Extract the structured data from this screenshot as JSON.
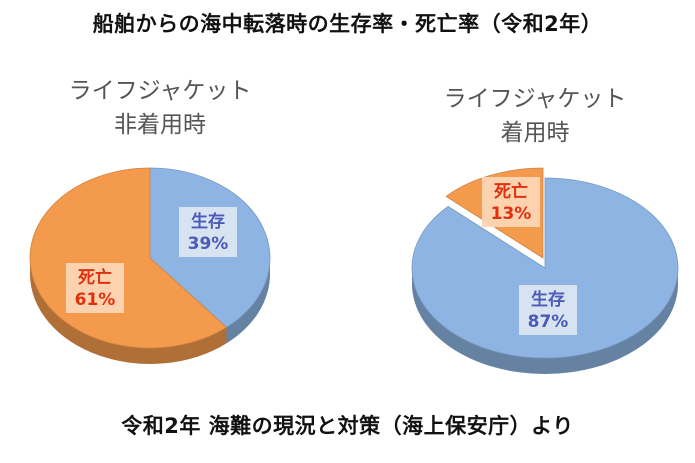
{
  "title": "船舶からの海中転落時の生存率・死亡率（令和2年）",
  "footer": "令和2年 海難の現況と対策（海上保安庁）より",
  "colors": {
    "survive": "#8DB4E2",
    "death": "#F39A4C",
    "survive_text": "#4A5BB8",
    "death_text": "#E03010"
  },
  "chart_data": [
    {
      "type": "pie",
      "title_lines": [
        "ライフジャケット",
        "非着用時"
      ],
      "slices": [
        {
          "label": "生存",
          "value": 39,
          "display": "39%"
        },
        {
          "label": "死亡",
          "value": 61,
          "display": "61%"
        }
      ]
    },
    {
      "type": "pie",
      "title_lines": [
        "ライフジャケット",
        "着用時"
      ],
      "slices": [
        {
          "label": "生存",
          "value": 87,
          "display": "87%"
        },
        {
          "label": "死亡",
          "value": 13,
          "display": "13%"
        }
      ]
    }
  ]
}
